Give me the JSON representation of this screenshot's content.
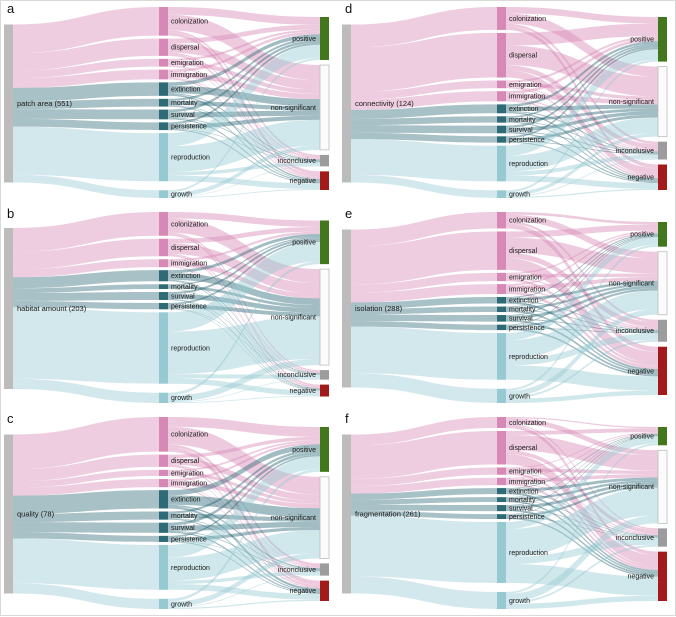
{
  "figure": {
    "description_visible_text_only": "Six Sankey/alluvial panels linking habitat drivers to demographic processes and result significance",
    "node_columns": [
      "driver",
      "process",
      "outcome"
    ]
  },
  "colors": {
    "source": "#bcbcbc",
    "movement": "#d689b6",
    "demographic": "#2f6b77",
    "vital": "#97c9d3"
  },
  "outcome_colors": {
    "positive": "#43771e",
    "non-significant": "#fbfbfb",
    "inconclusive": "#9c9c9c",
    "negative": "#a31a1a"
  },
  "process_groups": {
    "colonization": "movement",
    "dispersal": "movement",
    "emigration": "movement",
    "immigration": "movement",
    "extinction": "demographic",
    "mortality": "demographic",
    "survival": "demographic",
    "persistence": "demographic",
    "reproduction": "vital",
    "growth": "vital"
  },
  "outcome_order": [
    "positive",
    "non-significant",
    "inconclusive",
    "negative"
  ],
  "chart_data": [
    {
      "panel": "a",
      "type": "sankey",
      "source": "patch area (551)",
      "total": 551,
      "processes": [
        {
          "name": "colonization",
          "value": 100
        },
        {
          "name": "dispersal",
          "value": 60
        },
        {
          "name": "emigration",
          "value": 27
        },
        {
          "name": "immigration",
          "value": 34
        },
        {
          "name": "extinction",
          "value": 47
        },
        {
          "name": "mortality",
          "value": 27
        },
        {
          "name": "survival",
          "value": 34
        },
        {
          "name": "persistence",
          "value": 27
        },
        {
          "name": "reproduction",
          "value": 168
        },
        {
          "name": "growth",
          "value": 27
        }
      ],
      "outcomes": [
        {
          "name": "positive",
          "value": 150
        },
        {
          "name": "non-significant",
          "value": 296
        },
        {
          "name": "inconclusive",
          "value": 40
        },
        {
          "name": "negative",
          "value": 65
        }
      ]
    },
    {
      "panel": "b",
      "type": "sankey",
      "source": "habitat amount (203)",
      "total": 203,
      "processes": [
        {
          "name": "colonization",
          "value": 30
        },
        {
          "name": "dispersal",
          "value": 22
        },
        {
          "name": "immigration",
          "value": 10
        },
        {
          "name": "extinction",
          "value": 14
        },
        {
          "name": "mortality",
          "value": 6
        },
        {
          "name": "survival",
          "value": 10
        },
        {
          "name": "persistence",
          "value": 8
        },
        {
          "name": "reproduction",
          "value": 90
        },
        {
          "name": "growth",
          "value": 13
        }
      ],
      "outcomes": [
        {
          "name": "positive",
          "value": 55
        },
        {
          "name": "non-significant",
          "value": 121
        },
        {
          "name": "inconclusive",
          "value": 12
        },
        {
          "name": "negative",
          "value": 15
        }
      ]
    },
    {
      "panel": "c",
      "type": "sankey",
      "source": "quality (78)",
      "total": 78,
      "processes": [
        {
          "name": "colonization",
          "value": 17
        },
        {
          "name": "dispersal",
          "value": 6
        },
        {
          "name": "emigration",
          "value": 3
        },
        {
          "name": "immigration",
          "value": 4
        },
        {
          "name": "extinction",
          "value": 9
        },
        {
          "name": "mortality",
          "value": 4
        },
        {
          "name": "survival",
          "value": 5
        },
        {
          "name": "persistence",
          "value": 3
        },
        {
          "name": "reproduction",
          "value": 22
        },
        {
          "name": "growth",
          "value": 5
        }
      ],
      "outcomes": [
        {
          "name": "positive",
          "value": 22
        },
        {
          "name": "non-significant",
          "value": 40
        },
        {
          "name": "inconclusive",
          "value": 6
        },
        {
          "name": "negative",
          "value": 10
        }
      ]
    },
    {
      "panel": "d",
      "type": "sankey",
      "source": "connectivity (124)",
      "total": 124,
      "processes": [
        {
          "name": "colonization",
          "value": 18
        },
        {
          "name": "dispersal",
          "value": 35
        },
        {
          "name": "emigration",
          "value": 6
        },
        {
          "name": "immigration",
          "value": 8
        },
        {
          "name": "extinction",
          "value": 7
        },
        {
          "name": "mortality",
          "value": 5
        },
        {
          "name": "survival",
          "value": 6
        },
        {
          "name": "persistence",
          "value": 5
        },
        {
          "name": "reproduction",
          "value": 28
        },
        {
          "name": "growth",
          "value": 6
        }
      ],
      "outcomes": [
        {
          "name": "positive",
          "value": 35
        },
        {
          "name": "non-significant",
          "value": 55
        },
        {
          "name": "inconclusive",
          "value": 14
        },
        {
          "name": "negative",
          "value": 20
        }
      ]
    },
    {
      "panel": "e",
      "type": "sankey",
      "source": "isolation (288)",
      "total": 288,
      "processes": [
        {
          "name": "colonization",
          "value": 30
        },
        {
          "name": "dispersal",
          "value": 70
        },
        {
          "name": "emigration",
          "value": 15
        },
        {
          "name": "immigration",
          "value": 18
        },
        {
          "name": "extinction",
          "value": 12
        },
        {
          "name": "mortality",
          "value": 10
        },
        {
          "name": "survival",
          "value": 12
        },
        {
          "name": "persistence",
          "value": 10
        },
        {
          "name": "reproduction",
          "value": 85
        },
        {
          "name": "growth",
          "value": 26
        }
      ],
      "outcomes": [
        {
          "name": "positive",
          "value": 45
        },
        {
          "name": "non-significant",
          "value": 115
        },
        {
          "name": "inconclusive",
          "value": 40
        },
        {
          "name": "negative",
          "value": 88
        }
      ]
    },
    {
      "panel": "f",
      "type": "sankey",
      "source": "fragmentation (261)",
      "total": 261,
      "processes": [
        {
          "name": "colonization",
          "value": 18
        },
        {
          "name": "dispersal",
          "value": 55
        },
        {
          "name": "emigration",
          "value": 12
        },
        {
          "name": "immigration",
          "value": 12
        },
        {
          "name": "extinction",
          "value": 10
        },
        {
          "name": "mortality",
          "value": 8
        },
        {
          "name": "survival",
          "value": 10
        },
        {
          "name": "persistence",
          "value": 8
        },
        {
          "name": "reproduction",
          "value": 100
        },
        {
          "name": "growth",
          "value": 28
        }
      ],
      "outcomes": [
        {
          "name": "positive",
          "value": 30
        },
        {
          "name": "non-significant",
          "value": 120
        },
        {
          "name": "inconclusive",
          "value": 30
        },
        {
          "name": "negative",
          "value": 81
        }
      ]
    }
  ]
}
